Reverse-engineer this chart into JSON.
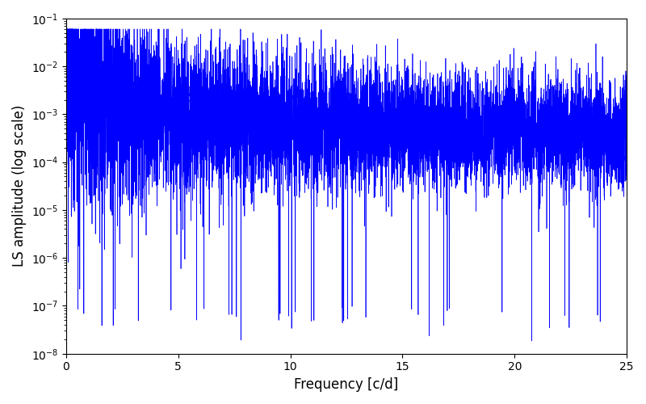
{
  "xlabel": "Frequency [c/d]",
  "ylabel": "LS amplitude (log scale)",
  "xlim": [
    0,
    25
  ],
  "ylim": [
    1e-08,
    0.1
  ],
  "line_color": "#0000ff",
  "line_width": 0.5,
  "background_color": "#ffffff",
  "n_points": 8000,
  "freq_max": 25.0,
  "seed": 123
}
